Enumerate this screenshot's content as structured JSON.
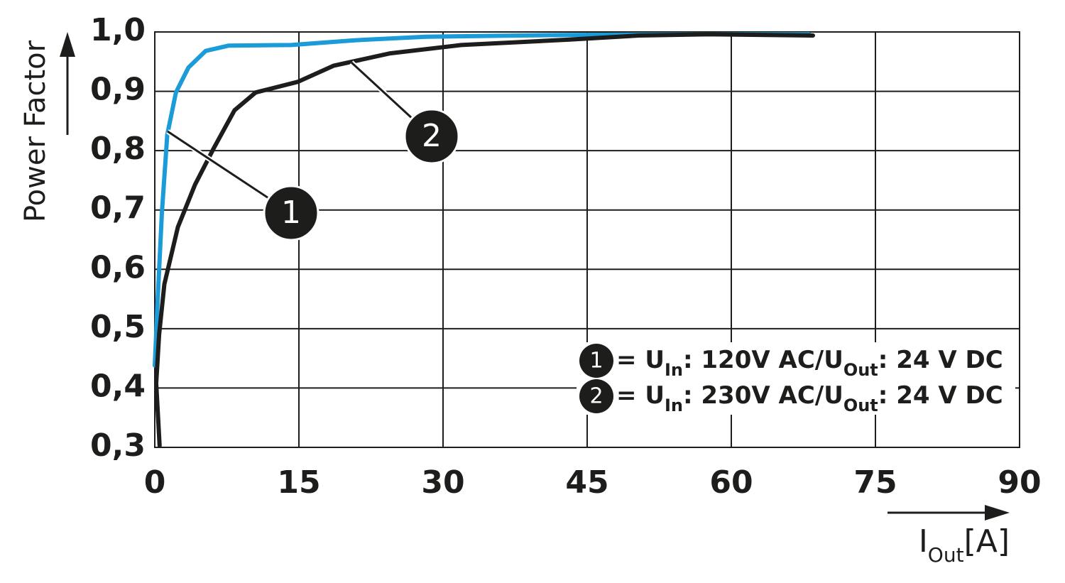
{
  "chart_data": {
    "type": "line",
    "y_label": "Power Factor",
    "x_label": {
      "main": "I",
      "sub": "Out",
      "unit": "[A]"
    },
    "xlim": [
      0,
      90
    ],
    "xticks": [
      0,
      15,
      30,
      45,
      60,
      75,
      90
    ],
    "ylim": [
      0.3,
      1.0
    ],
    "yticks": [
      {
        "value": 0.3,
        "label": "0,3"
      },
      {
        "value": 0.4,
        "label": "0,4"
      },
      {
        "value": 0.5,
        "label": "0,5"
      },
      {
        "value": 0.6,
        "label": "0,6"
      },
      {
        "value": 0.7,
        "label": "0,7"
      },
      {
        "value": 0.8,
        "label": "0,8"
      },
      {
        "value": 0.9,
        "label": "0,9"
      },
      {
        "value": 1.0,
        "label": "1,0"
      }
    ],
    "grid": true,
    "legend_position": "lower right",
    "series": [
      {
        "name": "1",
        "color": "#1b9bd7",
        "legend": [
          {
            "text": "= U"
          },
          {
            "sub": "In"
          },
          {
            "text": ": 120V AC/U"
          },
          {
            "sub": "Out"
          },
          {
            "text": ": 24 V DC"
          }
        ],
        "x": [
          0,
          0.3,
          0.74,
          1.3,
          2.2,
          3.5,
          5.3,
          7.7,
          14.2,
          20.8,
          28.2,
          43,
          57.8,
          68.1
        ],
        "values": [
          0.438,
          0.55,
          0.695,
          0.827,
          0.898,
          0.94,
          0.968,
          0.977,
          0.978,
          0.986,
          0.992,
          0.995,
          0.996,
          0.996
        ]
      },
      {
        "name": "2",
        "color": "#1d1d1b",
        "legend": [
          {
            "text": "= U"
          },
          {
            "sub": "In"
          },
          {
            "text": ": 230V AC/U"
          },
          {
            "sub": "Out"
          },
          {
            "text": ": 24 V DC"
          }
        ],
        "x": [
          0.5,
          0.15,
          0.45,
          1.0,
          2.4,
          4.2,
          6.1,
          8.3,
          10.5,
          14.9,
          18.6,
          24.5,
          31.9,
          43,
          50.4,
          57.8,
          68.5
        ],
        "values": [
          0.303,
          0.408,
          0.49,
          0.575,
          0.671,
          0.743,
          0.803,
          0.868,
          0.898,
          0.916,
          0.943,
          0.964,
          0.978,
          0.987,
          0.994,
          0.996,
          0.994
        ]
      }
    ]
  }
}
